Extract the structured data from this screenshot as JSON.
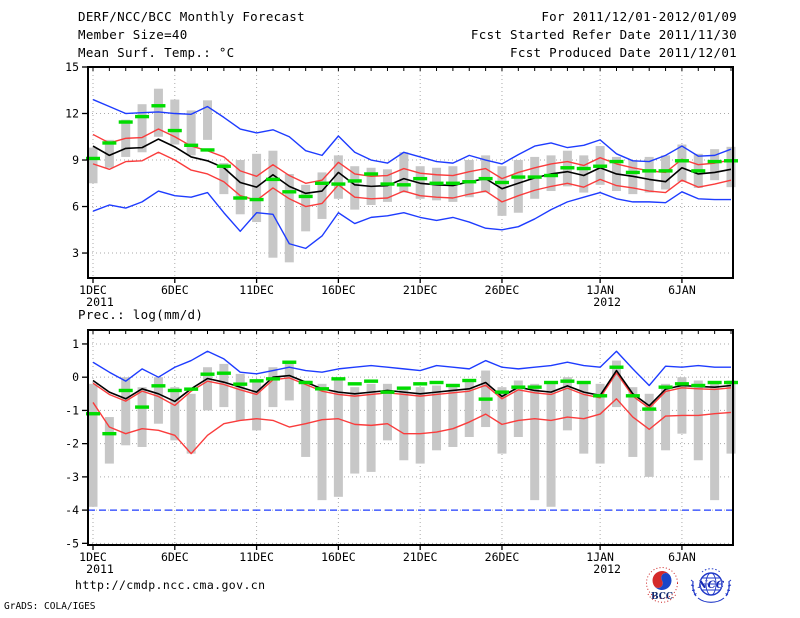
{
  "header": {
    "title": "DERF/NCC/BCC Monthly Forecast",
    "member_size": "Member Size=40",
    "for_range": "For 2011/12/01-2012/01/09",
    "fcst_started": "Fcst Started Refer Date 2011/11/30",
    "fcst_produced": "Fcst Produced Date 2011/12/01"
  },
  "footer": {
    "url": "http://cmdp.ncc.cma.gov.cn",
    "grads_credit": "GrADS: COLA/IGES",
    "logos": [
      {
        "name": "bcc-logo",
        "label": "BCC"
      },
      {
        "name": "ncc-logo",
        "label": "NCC"
      }
    ]
  },
  "colors": {
    "frame": "#000000",
    "grid": "#aaaaaa",
    "range_bar": "#c7c7c7",
    "blue_line": "#1e3cff",
    "red_line": "#fa3c3c",
    "black_line": "#000000",
    "green_dash": "#00dc00",
    "text": "#000000"
  },
  "chart_data": [
    {
      "type": "line",
      "title": "Mean Surf. Temp.: °C",
      "ylabel": "°C",
      "ylim": [
        1.39,
        15
      ],
      "yticks": [
        15,
        12,
        9,
        6,
        3
      ],
      "grid": true,
      "x": {
        "count": 40,
        "tick_indices": [
          0,
          5,
          10,
          15,
          20,
          25,
          31,
          36
        ],
        "tick_labels": [
          "1DEC",
          "6DEC",
          "11DEC",
          "16DEC",
          "21DEC",
          "26DEC",
          "1JAN",
          "6JAN"
        ],
        "sub_labels": [
          {
            "index": 0,
            "label": "2011"
          },
          {
            "index": 31,
            "label": "2012"
          }
        ]
      },
      "series": [
        {
          "name": "ensemble-range-bars",
          "type": "bar",
          "ranges": [
            [
              7.5,
              9.8
            ],
            [
              8.5,
              10.3
            ],
            [
              9.2,
              11.6
            ],
            [
              9.5,
              12.6
            ],
            [
              10.5,
              13.6
            ],
            [
              10.0,
              12.9
            ],
            [
              9.3,
              12.2
            ],
            [
              10.3,
              12.85
            ],
            [
              6.8,
              8.8
            ],
            [
              5.5,
              9.0
            ],
            [
              5.0,
              9.4
            ],
            [
              2.7,
              9.6
            ],
            [
              2.4,
              8.1
            ],
            [
              4.4,
              7.4
            ],
            [
              5.2,
              8.2
            ],
            [
              6.5,
              9.3
            ],
            [
              5.8,
              8.6
            ],
            [
              6.1,
              8.5
            ],
            [
              6.3,
              8.4
            ],
            [
              6.9,
              9.5
            ],
            [
              6.5,
              8.6
            ],
            [
              6.4,
              8.5
            ],
            [
              6.3,
              8.6
            ],
            [
              6.6,
              9.0
            ],
            [
              6.9,
              9.3
            ],
            [
              5.4,
              8.6
            ],
            [
              5.6,
              9.0
            ],
            [
              6.5,
              9.2
            ],
            [
              7.0,
              9.3
            ],
            [
              7.3,
              9.6
            ],
            [
              6.9,
              9.3
            ],
            [
              7.4,
              9.9
            ],
            [
              7.0,
              9.2
            ],
            [
              6.8,
              9.0
            ],
            [
              6.9,
              9.2
            ],
            [
              7.1,
              9.3
            ],
            [
              7.6,
              10.0
            ],
            [
              7.2,
              9.4
            ],
            [
              7.7,
              9.7
            ],
            [
              7.25,
              9.85
            ]
          ]
        },
        {
          "name": "ensemble-max",
          "type": "line",
          "color": "blue_line",
          "values": [
            12.9,
            12.45,
            12.0,
            12.05,
            12.1,
            12.0,
            11.95,
            12.45,
            11.75,
            11.0,
            10.75,
            10.95,
            10.5,
            9.6,
            9.3,
            10.55,
            9.5,
            9.0,
            8.8,
            9.5,
            9.2,
            8.9,
            8.8,
            9.3,
            9.0,
            8.75,
            9.35,
            9.9,
            10.1,
            9.8,
            9.95,
            10.3,
            9.4,
            8.95,
            8.9,
            9.3,
            9.9,
            9.25,
            9.3,
            9.7
          ]
        },
        {
          "name": "mean-plus-spread",
          "type": "line",
          "color": "red_line",
          "values": [
            10.65,
            10.1,
            10.4,
            10.45,
            11.0,
            10.5,
            9.9,
            9.6,
            9.2,
            8.3,
            7.95,
            8.7,
            8.0,
            7.5,
            7.7,
            8.85,
            8.1,
            7.95,
            8.0,
            8.45,
            8.15,
            8.05,
            8.0,
            8.25,
            8.45,
            7.8,
            8.2,
            8.5,
            8.75,
            8.9,
            8.65,
            9.15,
            8.75,
            8.5,
            8.3,
            8.2,
            9.05,
            8.7,
            8.8,
            9.0
          ]
        },
        {
          "name": "ensemble-mean",
          "type": "line",
          "color": "black_line",
          "values": [
            9.9,
            9.3,
            9.75,
            9.8,
            10.35,
            9.85,
            9.2,
            8.95,
            8.5,
            7.55,
            7.25,
            8.05,
            7.3,
            6.85,
            7.0,
            8.2,
            7.4,
            7.3,
            7.35,
            7.8,
            7.5,
            7.4,
            7.35,
            7.6,
            7.8,
            7.15,
            7.5,
            7.85,
            8.1,
            8.25,
            8.0,
            8.5,
            8.1,
            7.95,
            7.75,
            7.6,
            8.5,
            8.1,
            8.2,
            8.4
          ]
        },
        {
          "name": "mean-minus-spread",
          "type": "line",
          "color": "red_line",
          "values": [
            8.75,
            8.4,
            8.9,
            8.95,
            9.5,
            9.0,
            8.35,
            8.1,
            7.6,
            6.7,
            6.4,
            7.2,
            6.5,
            6.0,
            6.2,
            7.4,
            6.6,
            6.5,
            6.55,
            7.0,
            6.7,
            6.6,
            6.55,
            6.8,
            7.0,
            6.3,
            6.7,
            7.05,
            7.3,
            7.5,
            7.25,
            7.75,
            7.35,
            7.2,
            7.0,
            6.9,
            7.7,
            7.25,
            7.45,
            7.7
          ]
        },
        {
          "name": "ensemble-min",
          "type": "line",
          "color": "blue_line",
          "values": [
            5.7,
            6.1,
            5.9,
            6.3,
            7.0,
            6.7,
            6.6,
            6.9,
            5.6,
            4.4,
            5.6,
            5.5,
            3.6,
            3.3,
            4.1,
            5.6,
            4.9,
            5.3,
            5.4,
            5.6,
            5.3,
            5.1,
            5.3,
            5.0,
            4.6,
            4.5,
            4.7,
            5.2,
            5.8,
            6.3,
            6.6,
            6.9,
            6.5,
            6.3,
            6.3,
            6.25,
            6.95,
            6.5,
            6.45,
            6.45
          ]
        },
        {
          "name": "median-dashes",
          "type": "dash",
          "values": [
            9.1,
            10.1,
            11.45,
            11.8,
            12.5,
            10.9,
            9.95,
            9.65,
            8.6,
            6.55,
            6.45,
            7.75,
            6.95,
            6.65,
            7.5,
            7.45,
            7.65,
            8.1,
            7.45,
            7.4,
            7.8,
            7.5,
            7.5,
            7.6,
            7.8,
            7.55,
            7.9,
            7.9,
            8.0,
            8.5,
            8.45,
            8.6,
            8.9,
            8.2,
            8.3,
            8.3,
            8.95,
            8.3,
            8.9,
            8.95
          ]
        }
      ]
    },
    {
      "type": "line",
      "title": "Prec.: log(mm/d)",
      "ylabel": "log(mm/d)",
      "ylim": [
        -5.05,
        1.42
      ],
      "yticks": [
        1,
        0,
        -1,
        -2,
        -3,
        -4,
        -5
      ],
      "grid": true,
      "x": {
        "count": 40,
        "tick_indices": [
          0,
          5,
          10,
          15,
          20,
          25,
          31,
          36
        ],
        "tick_labels": [
          "1DEC",
          "6DEC",
          "11DEC",
          "16DEC",
          "21DEC",
          "26DEC",
          "1JAN",
          "6JAN"
        ],
        "sub_labels": [
          {
            "index": 0,
            "label": "2011"
          },
          {
            "index": 31,
            "label": "2012"
          }
        ]
      },
      "series": [
        {
          "name": "ensemble-range-bars",
          "type": "bar",
          "ranges": [
            [
              -3.9,
              -0.2
            ],
            [
              -2.6,
              -1.2
            ],
            [
              -2.05,
              0.0
            ],
            [
              -2.1,
              -0.3
            ],
            [
              -1.4,
              0.0
            ],
            [
              -1.9,
              -0.3
            ],
            [
              -2.3,
              -0.5
            ],
            [
              -1.0,
              0.3
            ],
            [
              -0.9,
              0.4
            ],
            [
              -1.3,
              0.1
            ],
            [
              -1.6,
              -0.1
            ],
            [
              -0.9,
              0.3
            ],
            [
              -0.7,
              0.5
            ],
            [
              -2.4,
              -0.1
            ],
            [
              -3.7,
              -0.2
            ],
            [
              -3.6,
              -0.1
            ],
            [
              -2.9,
              -0.3
            ],
            [
              -2.85,
              -0.2
            ],
            [
              -1.9,
              -0.2
            ],
            [
              -2.5,
              -0.3
            ],
            [
              -2.6,
              -0.3
            ],
            [
              -2.2,
              -0.25
            ],
            [
              -2.1,
              -0.2
            ],
            [
              -1.8,
              -0.1
            ],
            [
              -1.5,
              0.2
            ],
            [
              -2.3,
              -0.3
            ],
            [
              -1.8,
              -0.1
            ],
            [
              -3.7,
              -0.2
            ],
            [
              -3.9,
              -0.15
            ],
            [
              -1.6,
              0.0
            ],
            [
              -2.3,
              -0.2
            ],
            [
              -2.6,
              -0.2
            ],
            [
              -0.9,
              0.5
            ],
            [
              -2.4,
              -0.3
            ],
            [
              -3.0,
              -0.5
            ],
            [
              -2.2,
              -0.2
            ],
            [
              -1.7,
              0.0
            ],
            [
              -2.5,
              -0.1
            ],
            [
              -3.7,
              -0.15
            ],
            [
              -2.3,
              -0.1
            ]
          ]
        },
        {
          "name": "ensemble-max",
          "type": "line",
          "color": "blue_line",
          "values": [
            0.45,
            0.15,
            -0.12,
            0.25,
            0.0,
            0.3,
            0.5,
            0.78,
            0.55,
            0.15,
            0.1,
            0.2,
            0.3,
            0.2,
            0.15,
            0.25,
            0.3,
            0.35,
            0.3,
            0.25,
            0.2,
            0.35,
            0.3,
            0.25,
            0.5,
            0.3,
            0.25,
            0.3,
            0.35,
            0.45,
            0.35,
            0.3,
            0.78,
            0.25,
            -0.25,
            0.33,
            0.3,
            0.35,
            0.3,
            0.3
          ]
        },
        {
          "name": "mean-plus-spread",
          "type": "line",
          "color": "red_line",
          "values": [
            -0.18,
            -0.52,
            -0.72,
            -0.42,
            -0.58,
            -0.85,
            -0.42,
            -0.12,
            -0.22,
            -0.38,
            -0.52,
            -0.08,
            -0.02,
            -0.22,
            -0.42,
            -0.52,
            -0.57,
            -0.52,
            -0.47,
            -0.52,
            -0.57,
            -0.52,
            -0.47,
            -0.42,
            -0.24,
            -0.65,
            -0.38,
            -0.47,
            -0.52,
            -0.33,
            -0.52,
            -0.62,
            0.13,
            -0.57,
            -0.93,
            -0.43,
            -0.32,
            -0.35,
            -0.37,
            -0.32
          ]
        },
        {
          "name": "ensemble-mean",
          "type": "line",
          "color": "black_line",
          "values": [
            -0.1,
            -0.45,
            -0.65,
            -0.35,
            -0.5,
            -0.73,
            -0.35,
            -0.04,
            -0.15,
            -0.3,
            -0.45,
            0.0,
            0.05,
            -0.15,
            -0.35,
            -0.45,
            -0.5,
            -0.45,
            -0.4,
            -0.45,
            -0.5,
            -0.45,
            -0.4,
            -0.35,
            -0.16,
            -0.58,
            -0.3,
            -0.4,
            -0.45,
            -0.26,
            -0.45,
            -0.55,
            0.2,
            -0.5,
            -0.86,
            -0.36,
            -0.25,
            -0.28,
            -0.3,
            -0.25
          ]
        },
        {
          "name": "mean-minus-spread",
          "type": "line",
          "color": "red_line",
          "values": [
            -0.76,
            -1.5,
            -1.7,
            -1.55,
            -1.6,
            -1.75,
            -2.3,
            -1.75,
            -1.4,
            -1.3,
            -1.25,
            -1.3,
            -1.5,
            -1.4,
            -1.28,
            -1.25,
            -1.42,
            -1.45,
            -1.4,
            -1.7,
            -1.7,
            -1.65,
            -1.55,
            -1.35,
            -1.11,
            -1.42,
            -1.3,
            -1.25,
            -1.3,
            -1.2,
            -1.25,
            -1.11,
            -0.65,
            -1.2,
            -1.57,
            -1.17,
            -1.15,
            -1.15,
            -1.1,
            -1.06
          ]
        },
        {
          "name": "ensemble-min-floor",
          "type": "hline-dashed",
          "color": "blue_line",
          "value": -4
        },
        {
          "name": "median-dashes",
          "type": "dash",
          "values": [
            -1.1,
            -1.7,
            -0.4,
            -0.9,
            -0.26,
            -0.4,
            -0.36,
            0.09,
            0.12,
            -0.21,
            -0.11,
            -0.05,
            0.45,
            -0.16,
            -0.35,
            -0.05,
            -0.2,
            -0.12,
            -0.45,
            -0.33,
            -0.2,
            -0.16,
            -0.25,
            -0.1,
            -0.66,
            -0.45,
            -0.3,
            -0.3,
            -0.16,
            -0.12,
            -0.16,
            -0.56,
            0.3,
            -0.56,
            -0.96,
            -0.3,
            -0.2,
            -0.25,
            -0.16,
            -0.16
          ]
        }
      ]
    }
  ]
}
